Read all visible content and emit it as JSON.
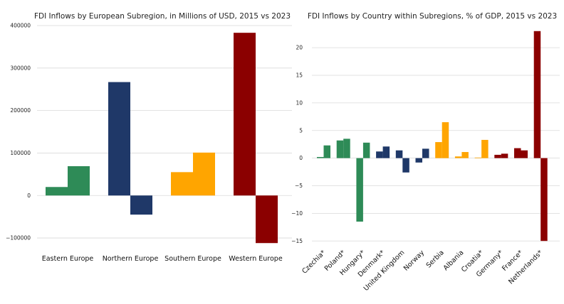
{
  "chart_data": [
    {
      "type": "bar",
      "title": "FDI Inflows by European Subregion, in Millions of USD, 2015 vs 2023",
      "xlabel": "",
      "ylabel": "",
      "categories": [
        "Eastern Europe",
        "Northern Europe",
        "Southern Europe",
        "Western Europe"
      ],
      "series": [
        {
          "values": [
            20000,
            267000,
            55000,
            383000
          ]
        },
        {
          "values": [
            69000,
            -45000,
            101000,
            -112000
          ]
        }
      ],
      "bar_colors": [
        "#2e8b57",
        "#1f3868",
        "#ffa500",
        "#8b0000"
      ],
      "ylim": [
        -125000,
        400000
      ],
      "yticks": [
        -100000,
        0,
        100000,
        200000,
        300000,
        400000
      ],
      "ytick_labels": [
        "−100000",
        "0",
        "100000",
        "200000",
        "300000",
        "400000"
      ],
      "grid": true,
      "legend": "none"
    },
    {
      "type": "bar",
      "title": "FDI Inflows by Country within Subregions, % of GDP, 2015 vs 2023",
      "xlabel": "",
      "ylabel": "",
      "categories": [
        "Czechia*",
        "Poland*",
        "Hungary*",
        "Denmark*",
        "United Kingdom",
        "Norway",
        "Serbia",
        "Albania",
        "Croatia*",
        "Germany*",
        "France*",
        "Netherlands*"
      ],
      "groups": [
        "Eastern Europe",
        "Eastern Europe",
        "Eastern Europe",
        "Northern Europe",
        "Northern Europe",
        "Northern Europe",
        "Southern Europe",
        "Southern Europe",
        "Southern Europe",
        "Western Europe",
        "Western Europe",
        "Western Europe"
      ],
      "series": [
        {
          "values": [
            0.2,
            3.2,
            -11.5,
            1.2,
            1.4,
            -0.8,
            2.9,
            0.3,
            0.1,
            0.6,
            1.8,
            23.0
          ]
        },
        {
          "values": [
            2.3,
            3.5,
            2.8,
            2.1,
            -2.6,
            1.7,
            6.5,
            1.1,
            3.3,
            0.8,
            1.4,
            -15.0
          ]
        }
      ],
      "bar_colors": [
        "#2e8b57",
        "#2e8b57",
        "#2e8b57",
        "#1f3868",
        "#1f3868",
        "#1f3868",
        "#ffa500",
        "#ffa500",
        "#ffa500",
        "#8b0000",
        "#8b0000",
        "#8b0000"
      ],
      "ylim": [
        -16,
        24
      ],
      "yticks": [
        -15,
        -10,
        -5,
        0,
        5,
        10,
        15,
        20
      ],
      "ytick_labels": [
        "−15",
        "−10",
        "−5",
        "0",
        "5",
        "10",
        "15",
        "20"
      ],
      "grid": true,
      "legend": "none"
    }
  ]
}
